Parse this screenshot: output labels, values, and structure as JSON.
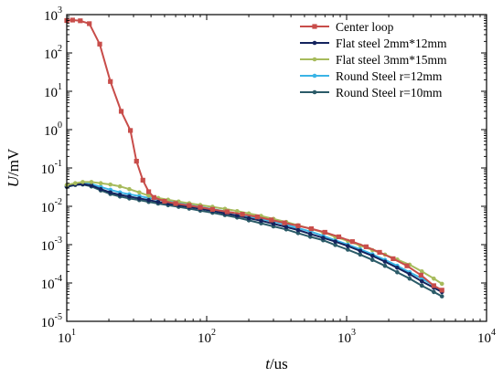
{
  "chart_data": {
    "type": "line",
    "xlabel_var": "t",
    "xlabel_unit": "/us",
    "ylabel_var": "U",
    "ylabel_unit": "/mV",
    "x_scale": "log",
    "y_scale": "log",
    "xlim": [
      10,
      10000
    ],
    "ylim": [
      1e-05,
      1000
    ],
    "grid": false,
    "legend_position": "top-right",
    "x_ticks": [
      {
        "value": 10,
        "base": "10",
        "exp": "1"
      },
      {
        "value": 100,
        "base": "10",
        "exp": "2"
      },
      {
        "value": 1000,
        "base": "10",
        "exp": "3"
      },
      {
        "value": 10000,
        "base": "10",
        "exp": "4"
      }
    ],
    "y_ticks": [
      {
        "value": 1e-05,
        "base": "10",
        "exp": "-5"
      },
      {
        "value": 0.0001,
        "base": "10",
        "exp": "-4"
      },
      {
        "value": 0.001,
        "base": "10",
        "exp": "-3"
      },
      {
        "value": 0.01,
        "base": "10",
        "exp": "-2"
      },
      {
        "value": 0.1,
        "base": "10",
        "exp": "-1"
      },
      {
        "value": 1,
        "base": "10",
        "exp": "0"
      },
      {
        "value": 10,
        "base": "10",
        "exp": "1"
      },
      {
        "value": 100,
        "base": "10",
        "exp": "2"
      },
      {
        "value": 1000,
        "base": "10",
        "exp": "3"
      }
    ],
    "series": [
      {
        "name": "Center loop",
        "color": "#c84d4a",
        "marker": "square",
        "x": [
          10,
          11,
          12.5,
          14.5,
          17.2,
          20.5,
          24.5,
          28.5,
          31.5,
          35,
          38.5,
          42,
          50,
          60,
          75,
          90,
          110,
          140,
          180,
          230,
          290,
          360,
          450,
          560,
          700,
          880,
          1100,
          1380,
          1720,
          2150,
          2700,
          3400,
          4200,
          4800
        ],
        "y": [
          700,
          720,
          690,
          580,
          170,
          18,
          3.0,
          0.95,
          0.15,
          0.048,
          0.024,
          0.017,
          0.0135,
          0.0118,
          0.0105,
          0.0094,
          0.0083,
          0.0072,
          0.0062,
          0.0053,
          0.0044,
          0.0037,
          0.0031,
          0.0026,
          0.0021,
          0.0016,
          0.0012,
          0.00088,
          0.00063,
          0.00043,
          0.00028,
          0.00016,
          8.5e-05,
          6.5e-05
        ]
      },
      {
        "name": "Flat steel 2mm*12mm",
        "color": "#14235e",
        "marker": "circle",
        "x": [
          10,
          11.5,
          13,
          15,
          17.5,
          20.5,
          24,
          28,
          33,
          38.5,
          45,
          53,
          63,
          75,
          90,
          110,
          135,
          165,
          200,
          245,
          300,
          370,
          450,
          550,
          680,
          830,
          1020,
          1250,
          1530,
          1880,
          2300,
          2820,
          3450,
          4200,
          4800
        ],
        "y": [
          0.033,
          0.037,
          0.038,
          0.035,
          0.028,
          0.023,
          0.02,
          0.018,
          0.016,
          0.0145,
          0.013,
          0.0118,
          0.0107,
          0.0096,
          0.0086,
          0.0076,
          0.0066,
          0.0057,
          0.0049,
          0.0042,
          0.0035,
          0.0029,
          0.0024,
          0.0019,
          0.0015,
          0.0012,
          0.00092,
          0.00069,
          0.00051,
          0.00036,
          0.00025,
          0.00017,
          0.00011,
          7.5e-05,
          5.8e-05
        ]
      },
      {
        "name": "Flat steel 3mm*15mm",
        "color": "#a7bb5c",
        "marker": "circle",
        "x": [
          10,
          11.5,
          13,
          15,
          17.5,
          20.5,
          24,
          28,
          33,
          38.5,
          45,
          53,
          63,
          75,
          90,
          110,
          135,
          165,
          200,
          245,
          300,
          370,
          450,
          550,
          680,
          830,
          1020,
          1250,
          1530,
          1880,
          2300,
          2820,
          3450,
          4200,
          4800
        ],
        "y": [
          0.036,
          0.04,
          0.043,
          0.043,
          0.04,
          0.037,
          0.033,
          0.028,
          0.023,
          0.019,
          0.0165,
          0.0148,
          0.0133,
          0.012,
          0.0108,
          0.0097,
          0.0086,
          0.0075,
          0.0065,
          0.0056,
          0.0047,
          0.0039,
          0.0032,
          0.0026,
          0.0021,
          0.0016,
          0.00125,
          0.00095,
          0.00072,
          0.00055,
          0.00041,
          0.0003,
          0.0002,
          0.00013,
          9.5e-05
        ]
      },
      {
        "name": "Round Steel r=12mm",
        "color": "#3ab4e6",
        "marker": "circle",
        "x": [
          10,
          11.5,
          13,
          15,
          17.5,
          20.5,
          24,
          28,
          33,
          38.5,
          45,
          53,
          63,
          75,
          90,
          110,
          135,
          165,
          200,
          245,
          300,
          370,
          450,
          550,
          680,
          830,
          1020,
          1250,
          1530,
          1880,
          2300,
          2820,
          3450,
          4200,
          4800
        ],
        "y": [
          0.035,
          0.039,
          0.04,
          0.038,
          0.032,
          0.027,
          0.023,
          0.0205,
          0.0185,
          0.0165,
          0.015,
          0.0135,
          0.0121,
          0.0108,
          0.0096,
          0.0085,
          0.0074,
          0.0064,
          0.0055,
          0.0047,
          0.004,
          0.0033,
          0.0027,
          0.0022,
          0.0017,
          0.0013,
          0.001,
          0.00076,
          0.00056,
          0.0004,
          0.00028,
          0.00019,
          0.00013,
          8.5e-05,
          6.5e-05
        ]
      },
      {
        "name": "Round Steel r=10mm",
        "color": "#2b5b68",
        "marker": "circle",
        "x": [
          10,
          11.5,
          13,
          15,
          17.5,
          20.5,
          24,
          28,
          33,
          38.5,
          45,
          53,
          63,
          75,
          90,
          110,
          135,
          165,
          200,
          245,
          300,
          370,
          450,
          550,
          680,
          830,
          1020,
          1250,
          1530,
          1880,
          2300,
          2820,
          3450,
          4200,
          4800
        ],
        "y": [
          0.032,
          0.036,
          0.037,
          0.033,
          0.026,
          0.021,
          0.018,
          0.016,
          0.0145,
          0.013,
          0.0118,
          0.0107,
          0.0097,
          0.0087,
          0.0077,
          0.0068,
          0.0059,
          0.0051,
          0.0043,
          0.0036,
          0.003,
          0.0025,
          0.002,
          0.0016,
          0.0013,
          0.00098,
          0.00074,
          0.00055,
          0.0004,
          0.00028,
          0.00019,
          0.00013,
          8.5e-05,
          5.8e-05,
          4.5e-05
        ]
      }
    ]
  }
}
